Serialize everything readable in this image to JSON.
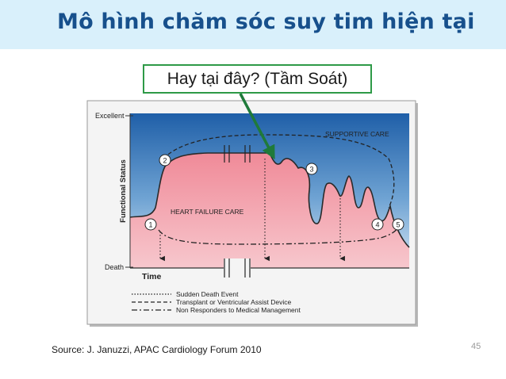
{
  "slide": {
    "title": "Mô hình chăm sóc suy tim hiện tại",
    "callout": "Hay tại đây? (Tầm Soát)",
    "source": "Source: J. Januzzi, APAC Cardiology Forum 2010",
    "page_number": "45"
  },
  "figure": {
    "y_top_label": "Excellent",
    "y_bottom_label": "Death",
    "y_axis_title": "Functional Status",
    "x_axis_title": "Time",
    "supportive_care": "SUPPORTIVE CARE",
    "heart_failure_care": "HEART FAILURE CARE",
    "markers": [
      "1",
      "2",
      "3",
      "4",
      "5"
    ],
    "legend": [
      {
        "label": "Sudden Death Event",
        "style": "dotted"
      },
      {
        "label": "Transplant or Ventricular Assist Device",
        "style": "dashed"
      },
      {
        "label": "Non Responders to Medical Management",
        "style": "dash-dot"
      }
    ]
  },
  "colors": {
    "title_bar": "#d9f0fb",
    "title_text": "#17508c",
    "callout_border": "#2e9a47",
    "arrow": "#1f7a3a",
    "figure_blue_top": "#1f5fa8",
    "figure_blue_bottom": "#d3e4f2",
    "heart_failure_pink": "#f08a98"
  }
}
